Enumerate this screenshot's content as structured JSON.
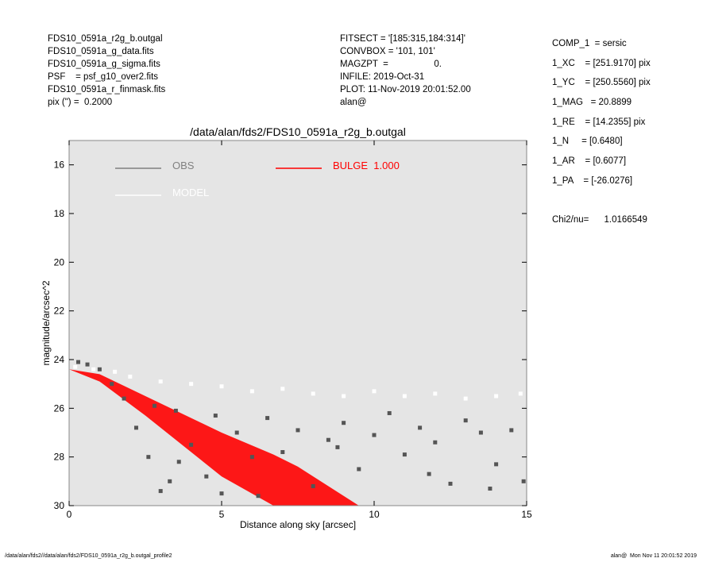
{
  "header": {
    "left": [
      "FDS10_0591a_r2g_b.outgal",
      "FDS10_0591a_g_data.fits",
      "FDS10_0591a_g_sigma.fits",
      "PSF    = psf_g10_over2.fits",
      "FDS10_0591a_r_finmask.fits",
      "pix (\") =  0.2000"
    ],
    "middle": [
      "FITSECT = '[185:315,184:314]'",
      "CONVBOX = '101, 101'",
      "MAGZPT  =                  0.",
      "INFILE: 2019-Oct-31",
      "PLOT: 11-Nov-2019 20:01:52.00",
      "alan@"
    ],
    "right": [
      "COMP_1  = sersic",
      "1_XC    = [251.9170] pix",
      "1_YC    = [250.5560] pix",
      "1_MAG   = 20.8899",
      "1_RE    = [14.2355] pix",
      "1_N     = [0.6480]",
      "1_AR    = [0.6077]",
      "1_PA    = [-26.0276]",
      "",
      "Chi2/nu=      1.0166549"
    ]
  },
  "footer": {
    "left": "/data/alan/fds2//data/alan/fds2/FDS10_0591a_r2g_b.outgal_profile2",
    "right": "alan@  Mon Nov 11 20:01:52 2019"
  },
  "chart_data": {
    "type": "scatter",
    "title": "/data/alan/fds2/FDS10_0591a_r2g_b.outgal",
    "xlabel": "Distance along sky [arcsec]",
    "ylabel": "magnitude/arcsec^2",
    "xlim": [
      0,
      15
    ],
    "xticks": [
      0,
      5,
      10,
      15
    ],
    "ylim": [
      30,
      15
    ],
    "yticks": [
      16,
      18,
      20,
      22,
      24,
      26,
      28,
      30
    ],
    "series": [
      {
        "name": "OBS",
        "color": "#808080",
        "marker_color": "#555555",
        "x": [
          0.3,
          0.6,
          1.0,
          1.4,
          1.8,
          2.2,
          2.6,
          3.0,
          3.3,
          3.6,
          4.0,
          4.5,
          5.0,
          5.5,
          6.0,
          6.5,
          7.0,
          7.5,
          8.0,
          8.5,
          9.0,
          9.5,
          10.0,
          10.5,
          11.0,
          11.5,
          12.0,
          12.5,
          13.0,
          13.5,
          14.0,
          14.5,
          14.9,
          3.5,
          4.8,
          6.2,
          8.8,
          11.8,
          13.8,
          2.8
        ],
        "values": [
          24.1,
          24.2,
          24.4,
          25.0,
          25.6,
          26.8,
          28.0,
          29.4,
          29.0,
          28.2,
          27.5,
          28.8,
          29.5,
          27.0,
          28.0,
          26.4,
          27.8,
          26.9,
          29.2,
          27.3,
          26.6,
          28.5,
          27.1,
          26.2,
          27.9,
          26.8,
          27.4,
          29.1,
          26.5,
          27.0,
          28.3,
          26.9,
          29.0,
          26.1,
          26.3,
          29.6,
          27.6,
          28.7,
          29.3,
          25.9
        ]
      },
      {
        "name": "MODEL",
        "color": "#ffffff",
        "x": [
          0.2,
          0.8,
          1.5,
          2.0,
          3.0,
          4.0,
          5.0,
          6.0,
          7.0,
          8.0,
          9.0,
          10.0,
          11.0,
          12.0,
          13.0,
          14.0,
          14.8
        ],
        "values": [
          24.3,
          24.4,
          24.5,
          24.7,
          24.9,
          25.0,
          25.1,
          25.3,
          25.2,
          25.4,
          25.5,
          25.3,
          25.5,
          25.4,
          25.6,
          25.5,
          25.4
        ]
      },
      {
        "name": "BULGE  1.000",
        "color": "#ff0000",
        "x": [
          0,
          1,
          2.5,
          5,
          6.7,
          7.5,
          9.5
        ],
        "values": [
          24.4,
          24.6,
          25.5,
          27.0,
          27.9,
          28.4,
          30
        ],
        "x_lower": [
          0,
          1,
          2.5,
          5,
          6.7
        ],
        "lower": [
          24.4,
          24.9,
          26.3,
          28.8,
          30
        ]
      }
    ]
  }
}
